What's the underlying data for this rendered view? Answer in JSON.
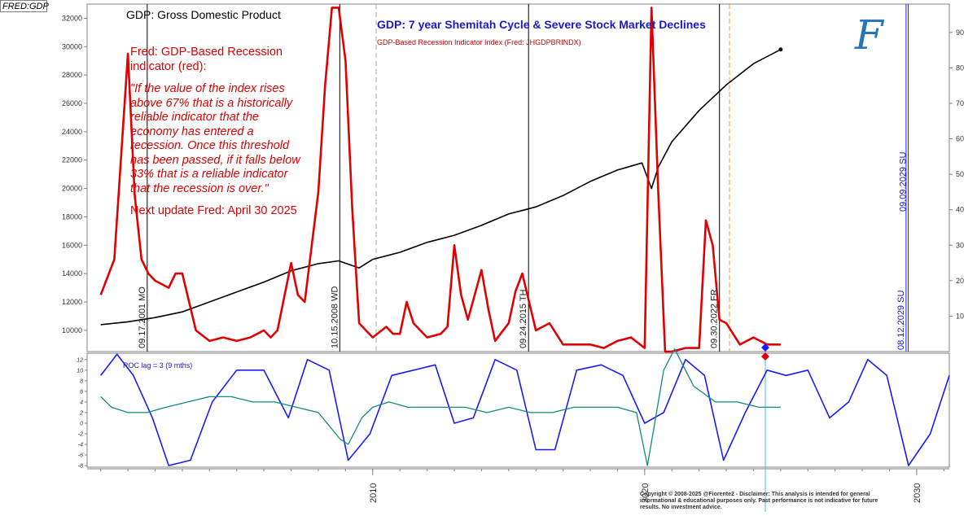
{
  "header": {
    "ticker": "FRED:GDP",
    "gdp_title": "GDP: Gross Domestic Product",
    "main_title": "GDP: 7 year Shemitah Cycle & Severe Stock Market Declines",
    "sub_title": "GDP-Based Recession Indicator Index (Fred: JHGDPBRINDX)",
    "logo": "F"
  },
  "annotation": {
    "head": "Fred: GDP-Based Recession indicator (red):",
    "quote": "\"If the value of the index rises above 67% that is a historically reliable indicator that the economy has entered a recession. Once this threshold has been passed, if it falls below 33% that is a reliable indicator that the recession is over.\"",
    "next_update": "Next update Fred: April 30 2025"
  },
  "lower_panel": {
    "label": "ROC lag = 3 (9 mths)"
  },
  "disclaimer": "Copyright © 2008-2025 @Fiorente2 - Disclaimer: This analysis is intended for general informational & educational purposes only. Past performance is not indicative for future results. No investment advice.",
  "colors": {
    "gdp": "#000000",
    "recession": "#e00000",
    "cycle": "#1a1aff",
    "roc": "#138a7a",
    "roc_alt": "#e00000",
    "title": "#1a1acc"
  },
  "chart_data": [
    {
      "type": "line",
      "title": "GDP: 7 year Shemitah Cycle & Severe Stock Market Declines",
      "x_axis": {
        "range": [
          1999.5,
          2031.2
        ],
        "tick_labels": [
          "2010",
          "2020",
          "2030"
        ],
        "tick_values": [
          2010,
          2020,
          2030
        ]
      },
      "y_left": {
        "range": [
          8500,
          33000
        ],
        "ticks": [
          10000,
          12000,
          14000,
          16000,
          18000,
          20000,
          22000,
          24000,
          26000,
          28000,
          30000,
          32000
        ]
      },
      "y_right": {
        "range": [
          0,
          98
        ],
        "ticks": [
          10,
          20,
          30,
          40,
          50,
          60,
          70,
          80,
          90
        ]
      },
      "grid": false,
      "series": [
        {
          "name": "GDP: Gross Domestic Product",
          "axis": "left",
          "x": [
            2000,
            2001,
            2002,
            2003,
            2004,
            2005,
            2006,
            2007,
            2008,
            2008.75,
            2009.5,
            2010,
            2011,
            2012,
            2013,
            2014,
            2015,
            2016,
            2017,
            2018,
            2019,
            2019.9,
            2020.25,
            2020.5,
            2021,
            2022,
            2023,
            2024,
            2025
          ],
          "values": [
            10400,
            10600,
            10900,
            11300,
            12000,
            12700,
            13400,
            14200,
            14700,
            14900,
            14400,
            15000,
            15500,
            16200,
            16700,
            17400,
            18200,
            18700,
            19500,
            20500,
            21300,
            21800,
            20000,
            21500,
            23300,
            25500,
            27300,
            28800,
            29800
          ]
        },
        {
          "name": "GDP-Based Recession Indicator Index",
          "axis": "right",
          "x": [
            2000,
            2000.5,
            2001,
            2001.25,
            2001.5,
            2001.75,
            2002,
            2002.5,
            2002.75,
            2003,
            2003.5,
            2004,
            2004.5,
            2005,
            2005.5,
            2006,
            2006.25,
            2006.5,
            2007,
            2007.25,
            2007.5,
            2008,
            2008.25,
            2008.5,
            2008.75,
            2009,
            2009.25,
            2009.5,
            2010,
            2010.5,
            2010.75,
            2011,
            2011.25,
            2011.5,
            2012,
            2012.5,
            2012.75,
            2013,
            2013.25,
            2013.5,
            2014,
            2014.25,
            2014.5,
            2015,
            2015.25,
            2015.5,
            2016,
            2016.5,
            2017,
            2017.5,
            2018,
            2018.5,
            2019,
            2019.5,
            2020,
            2020.25,
            2020.5,
            2020.75,
            2021,
            2021.5,
            2022,
            2022.25,
            2022.5,
            2022.75,
            2023,
            2023.5,
            2024,
            2024.5,
            2025
          ],
          "values": [
            16,
            26,
            84,
            44,
            26,
            22,
            20,
            18,
            22,
            22,
            6,
            3,
            4,
            3,
            4,
            6,
            4,
            6,
            25,
            16,
            14,
            45,
            75,
            97,
            97,
            82,
            40,
            8,
            4,
            7,
            5,
            5,
            14,
            8,
            4,
            5,
            7,
            30,
            16,
            9,
            23,
            12,
            3,
            8,
            17,
            22,
            6,
            8,
            2,
            2,
            2,
            1,
            3,
            4,
            1,
            97,
            45,
            0,
            0,
            1,
            1,
            37,
            30,
            9,
            8,
            2,
            4,
            2,
            2
          ]
        }
      ],
      "vertical_markers": [
        {
          "label": "09.17.2001 MO",
          "x": 2001.71,
          "color": "#000000"
        },
        {
          "label": "10.15.2008 WD",
          "x": 2008.79,
          "color": "#000000"
        },
        {
          "label": "09.24.2015 TH",
          "x": 2015.73,
          "color": "#000000"
        },
        {
          "label": "09.30.2022 FR",
          "x": 2022.75,
          "color": "#000000"
        },
        {
          "label": "09.09.2029 SU",
          "x": 2029.69,
          "color": "#1a1aff"
        },
        {
          "label": "08.12.2029 SU",
          "x": 2029.61,
          "color": "#1a1aff"
        }
      ]
    },
    {
      "type": "line",
      "title": "ROC lag = 3 (9 mths)",
      "y_axis": {
        "range": [
          -8.3,
          13.2
        ],
        "ticks": [
          -8,
          -6,
          -4,
          -2,
          0,
          2,
          4,
          6,
          8,
          10,
          12
        ]
      },
      "grid": false,
      "series": [
        {
          "name": "cycle",
          "x": [
            2000,
            2000.6,
            2001.2,
            2001.9,
            2002.5,
            2003.3,
            2004.1,
            2005,
            2006,
            2006.9,
            2007.6,
            2008.4,
            2009.1,
            2009.9,
            2010.7,
            2011.5,
            2012.3,
            2013,
            2013.7,
            2014.5,
            2015.3,
            2016,
            2016.7,
            2017.5,
            2018.4,
            2019.2,
            2020,
            2020.7,
            2021.5,
            2022.2,
            2022.9,
            2023.7,
            2024.5,
            2025.2,
            2026,
            2026.8,
            2027.5,
            2028.2,
            2028.9,
            2029.7,
            2030.5,
            2031.2
          ],
          "values": [
            9,
            13,
            9,
            1,
            -8,
            -7,
            4,
            10,
            10,
            1,
            12,
            10,
            -7,
            -2,
            9,
            10,
            11,
            0,
            1,
            12,
            10,
            -5,
            -5,
            10,
            11,
            9,
            0,
            2,
            12,
            9,
            -7,
            2,
            10,
            9,
            10,
            1,
            4,
            12,
            9,
            -8,
            -2,
            9
          ]
        },
        {
          "name": "ROC",
          "x": [
            2000,
            2000.4,
            2001,
            2001.7,
            2002.4,
            2003.2,
            2004,
            2004.8,
            2005.6,
            2006.4,
            2007.2,
            2008,
            2008.8,
            2009.1,
            2009.6,
            2010,
            2010.6,
            2011.3,
            2012,
            2012.7,
            2013.4,
            2014.2,
            2015,
            2015.8,
            2016.6,
            2017.4,
            2018.2,
            2019,
            2019.7,
            2020.1,
            2020.3,
            2020.7,
            2021.1,
            2021.8,
            2022.6,
            2023.4,
            2024.2,
            2025
          ],
          "values": [
            5,
            3,
            2,
            2,
            3,
            4,
            5,
            5,
            4,
            4,
            3,
            2,
            -3,
            -4,
            1,
            3,
            4,
            3,
            3,
            3,
            3,
            2,
            3,
            2,
            2,
            3,
            3,
            3,
            2,
            -8,
            -2,
            10,
            14,
            7,
            4,
            4,
            3,
            3
          ]
        }
      ]
    }
  ]
}
